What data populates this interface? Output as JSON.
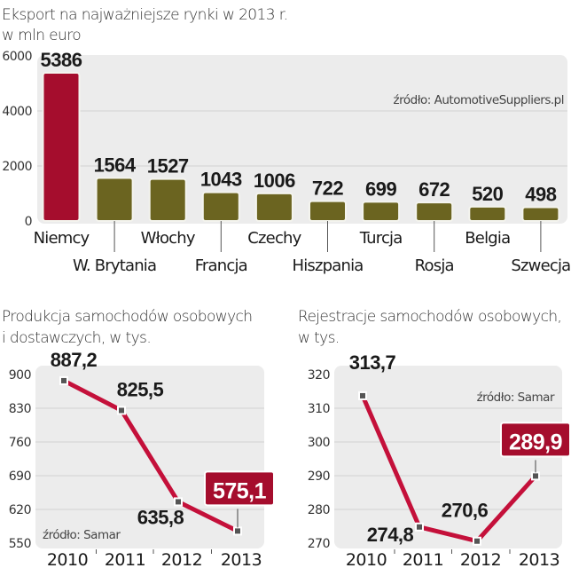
{
  "chart_data": [
    {
      "type": "bar",
      "title": "Eksport na najważniejsze rynki w 2013 r.",
      "subtitle": "w mln euro",
      "source": "źródło: AutomotiveSuppliers.pl",
      "categories": [
        "Niemcy",
        "W. Brytania",
        "Włochy",
        "Francja",
        "Czechy",
        "Hiszpania",
        "Turcja",
        "Rosja",
        "Belgia",
        "Szwecja"
      ],
      "values": [
        5386,
        1564,
        1527,
        1043,
        1006,
        722,
        699,
        672,
        520,
        498
      ],
      "value_labels": [
        "5386",
        "1564",
        "1527",
        "1043",
        "1006",
        "722",
        "699",
        "672",
        "520",
        "498"
      ],
      "yticks": [
        "0",
        "2000",
        "4000",
        "6000"
      ],
      "ylim": [
        0,
        6000
      ],
      "grid": true,
      "colors": {
        "highlight": "#a50d2d",
        "default": "#6b6420"
      }
    },
    {
      "type": "line",
      "title": "Produkcja samochodów osobowych",
      "subtitle": "i dostawczych, w tys.",
      "source": "źródło: Samar",
      "x": [
        "2010",
        "2011",
        "2012",
        "2013"
      ],
      "values": [
        887.2,
        825.5,
        635.8,
        575.1
      ],
      "value_labels": [
        "887,2",
        "825,5",
        "635,8",
        "575,1"
      ],
      "highlight_index": 3,
      "yticks": [
        "550",
        "620",
        "690",
        "760",
        "830",
        "900"
      ],
      "ylim": [
        550,
        900
      ],
      "color": "#c4103a"
    },
    {
      "type": "line",
      "title": "Rejestracje samochodów osobowych,",
      "subtitle": "w tys.",
      "source": "źródło: Samar",
      "x": [
        "2010",
        "2011",
        "2012",
        "2013"
      ],
      "values": [
        313.7,
        274.8,
        270.6,
        289.9
      ],
      "value_labels": [
        "313,7",
        "274,8",
        "270,6",
        "289,9"
      ],
      "highlight_index": 3,
      "yticks": [
        "270",
        "280",
        "290",
        "300",
        "310",
        "320"
      ],
      "ylim": [
        270,
        320
      ],
      "color": "#c4103a"
    }
  ]
}
